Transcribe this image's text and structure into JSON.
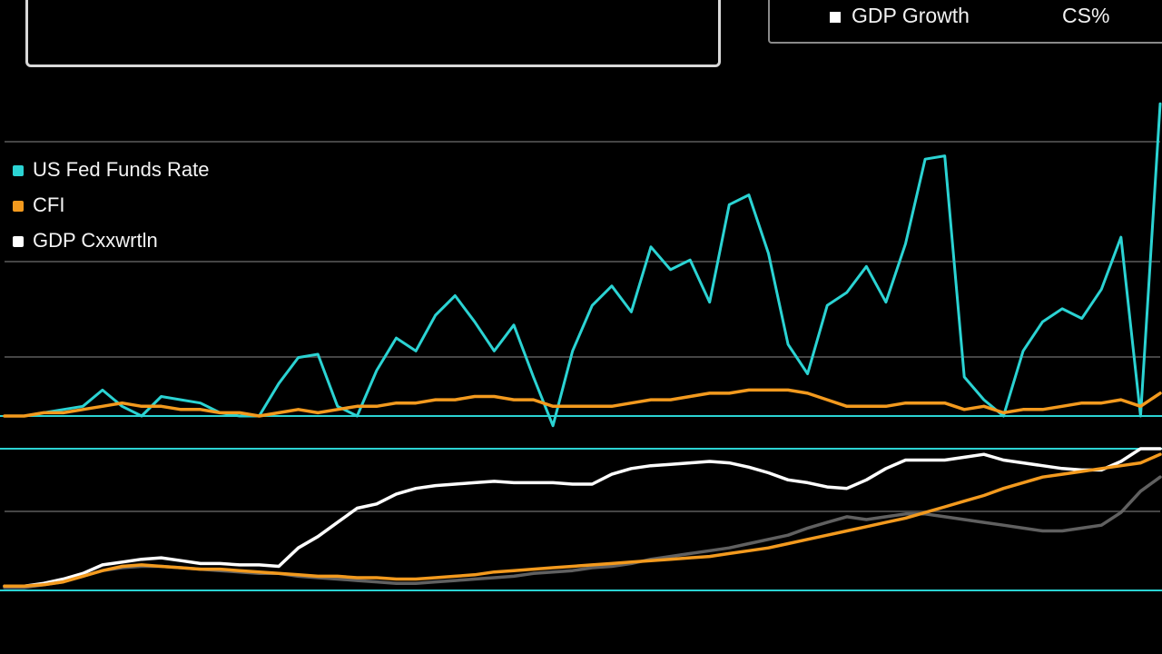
{
  "header_box": {
    "label": ""
  },
  "top_legend": {
    "label": "GDP Growth",
    "value": "CS%",
    "color": "#ffffff"
  },
  "legend": [
    {
      "label": "US Fed Funds Rate",
      "color": "#2bd3d3"
    },
    {
      "label": "CFI",
      "color": "#f39a1e"
    },
    {
      "label": "GDP Cxxwrtln",
      "color": "#ffffff"
    }
  ],
  "chart_data": [
    {
      "type": "line",
      "title": "",
      "xlabel": "",
      "ylabel": "",
      "grid": true,
      "ylim": [
        0,
        100
      ],
      "x": [
        0,
        1,
        2,
        3,
        4,
        5,
        6,
        7,
        8,
        9,
        10,
        11,
        12,
        13,
        14,
        15,
        16,
        17,
        18,
        19,
        20,
        21,
        22,
        23,
        24,
        25,
        26,
        27,
        28,
        29,
        30,
        31,
        32,
        33,
        34,
        35,
        36,
        37,
        38,
        39,
        40,
        41,
        42,
        43,
        44,
        45,
        46,
        47,
        48,
        49,
        50,
        51,
        52,
        53,
        54,
        55,
        56,
        57,
        58,
        59
      ],
      "series": [
        {
          "name": "US Fed Funds Rate",
          "color": "#2bd3d3",
          "values": [
            0,
            0,
            1,
            2,
            3,
            8,
            3,
            0,
            6,
            5,
            4,
            1,
            0,
            0,
            10,
            18,
            19,
            3,
            0,
            14,
            24,
            20,
            31,
            37,
            29,
            20,
            28,
            12,
            -3,
            20,
            34,
            40,
            32,
            52,
            45,
            48,
            35,
            65,
            68,
            50,
            22,
            13,
            34,
            38,
            46,
            35,
            53,
            79,
            80,
            12,
            5,
            0,
            20,
            29,
            33,
            30,
            39,
            55,
            0,
            96
          ]
        },
        {
          "name": "CFI",
          "color": "#f39a1e",
          "values": [
            0,
            0,
            1,
            1,
            2,
            3,
            4,
            3,
            3,
            2,
            2,
            1,
            1,
            0,
            1,
            2,
            1,
            2,
            3,
            3,
            4,
            4,
            5,
            5,
            6,
            6,
            5,
            5,
            3,
            3,
            3,
            3,
            4,
            5,
            5,
            6,
            7,
            7,
            8,
            8,
            8,
            7,
            5,
            3,
            3,
            3,
            4,
            4,
            4,
            2,
            3,
            1,
            2,
            2,
            3,
            4,
            4,
            5,
            3,
            7
          ]
        }
      ]
    },
    {
      "type": "line",
      "title": "",
      "xlabel": "",
      "ylabel": "",
      "grid": true,
      "ylim": [
        0,
        100
      ],
      "x": [
        0,
        1,
        2,
        3,
        4,
        5,
        6,
        7,
        8,
        9,
        10,
        11,
        12,
        13,
        14,
        15,
        16,
        17,
        18,
        19,
        20,
        21,
        22,
        23,
        24,
        25,
        26,
        27,
        28,
        29,
        30,
        31,
        32,
        33,
        34,
        35,
        36,
        37,
        38,
        39,
        40,
        41,
        42,
        43,
        44,
        45,
        46,
        47,
        48,
        49,
        50,
        51,
        52,
        53,
        54,
        55,
        56,
        57,
        58,
        59
      ],
      "series": [
        {
          "name": "GDP Growth",
          "color": "#ffffff",
          "values": [
            3,
            3,
            5,
            8,
            12,
            18,
            20,
            22,
            23,
            21,
            19,
            19,
            18,
            18,
            17,
            30,
            38,
            48,
            58,
            61,
            68,
            72,
            74,
            75,
            76,
            77,
            76,
            76,
            76,
            75,
            75,
            82,
            86,
            88,
            89,
            90,
            91,
            90,
            87,
            83,
            78,
            76,
            73,
            72,
            78,
            86,
            92,
            92,
            92,
            94,
            96,
            92,
            90,
            88,
            86,
            85,
            85,
            91,
            100,
            100
          ]
        },
        {
          "name": "",
          "color": "#6a6a6a",
          "values": [
            2,
            2,
            4,
            6,
            10,
            14,
            16,
            17,
            17,
            16,
            15,
            14,
            13,
            12,
            12,
            10,
            9,
            8,
            7,
            6,
            5,
            5,
            6,
            7,
            8,
            9,
            10,
            12,
            13,
            14,
            16,
            17,
            19,
            22,
            24,
            26,
            28,
            30,
            33,
            36,
            39,
            44,
            48,
            52,
            50,
            52,
            54,
            54,
            52,
            50,
            48,
            46,
            44,
            42,
            42,
            44,
            46,
            55,
            70,
            80
          ]
        },
        {
          "name": "",
          "color": "#f39a1e",
          "values": [
            3,
            3,
            4,
            6,
            10,
            14,
            17,
            18,
            17,
            16,
            15,
            15,
            14,
            13,
            12,
            11,
            10,
            10,
            9,
            9,
            8,
            8,
            9,
            10,
            11,
            13,
            14,
            15,
            16,
            17,
            18,
            19,
            20,
            21,
            22,
            23,
            24,
            26,
            28,
            30,
            33,
            36,
            39,
            42,
            45,
            48,
            51,
            55,
            59,
            63,
            67,
            72,
            76,
            80,
            82,
            84,
            86,
            88,
            90,
            96
          ]
        }
      ]
    }
  ]
}
